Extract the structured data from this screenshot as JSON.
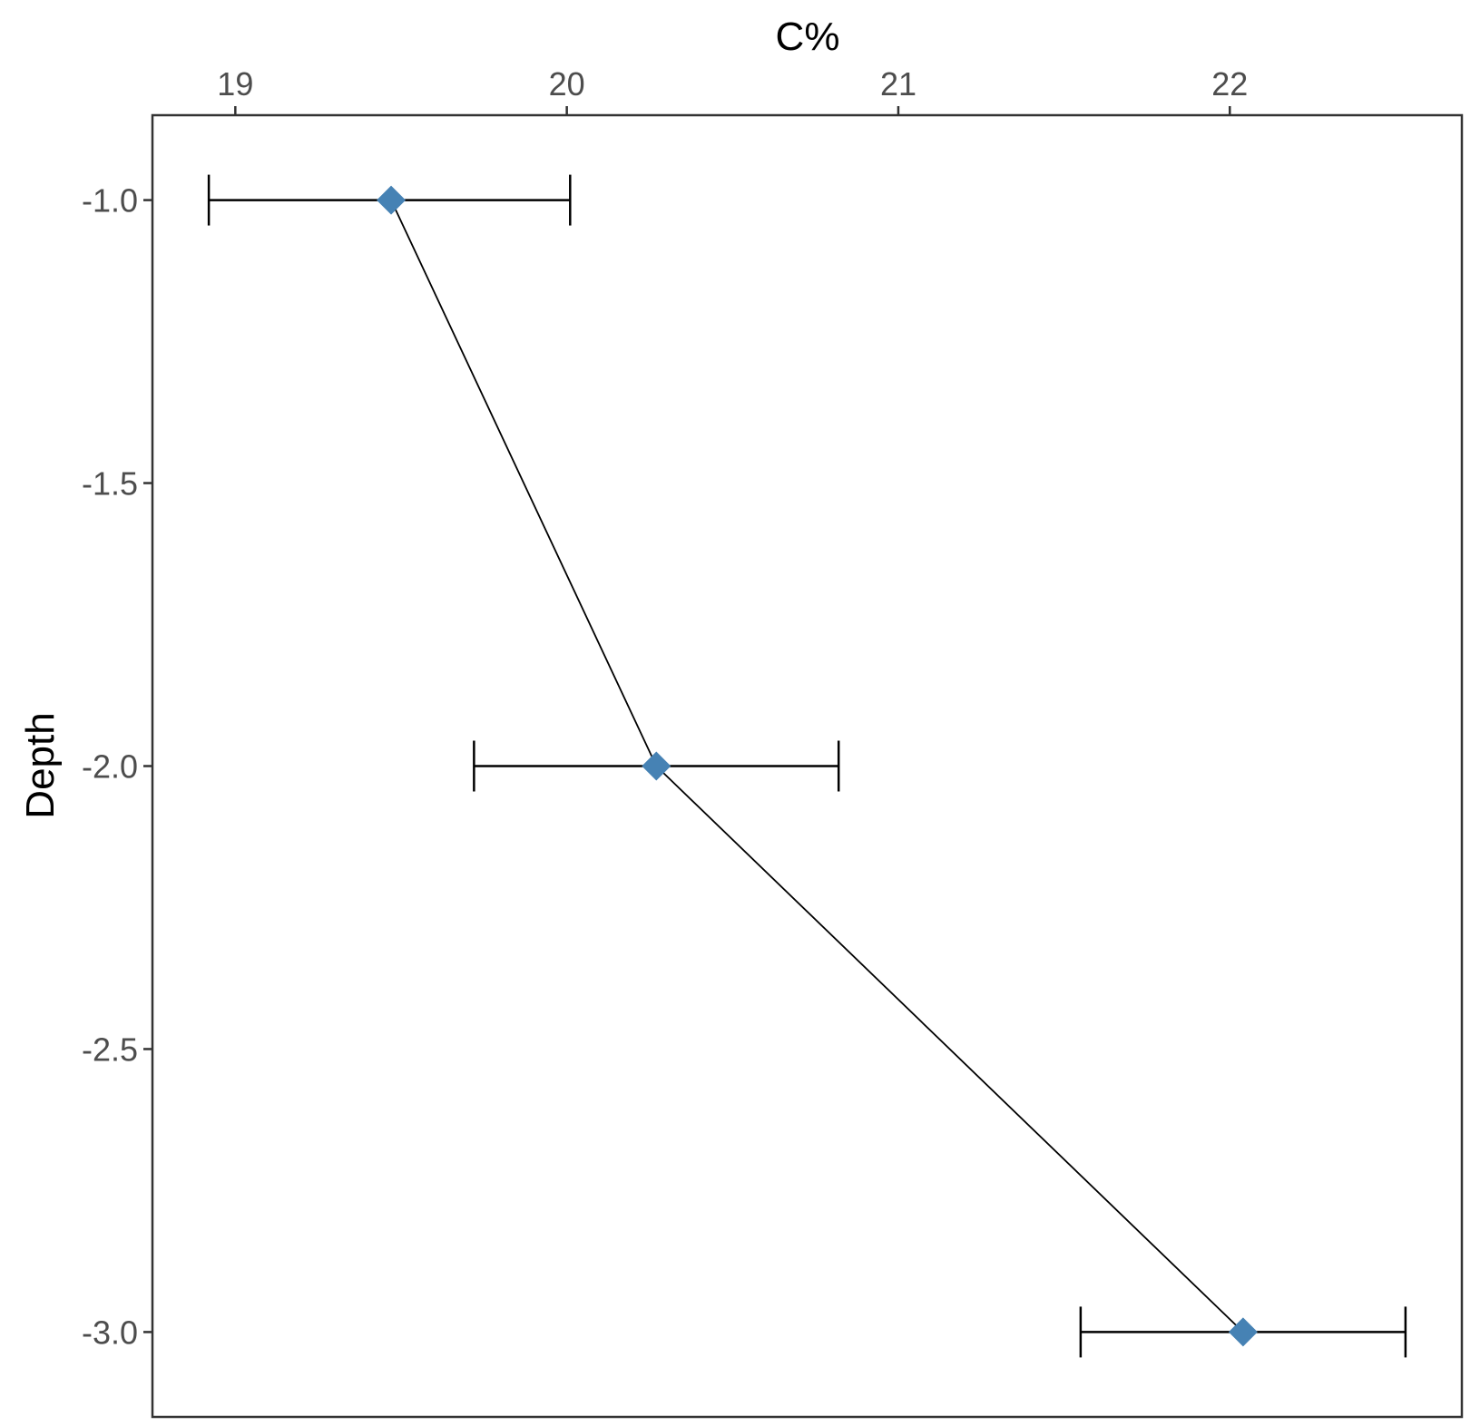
{
  "chart_data": {
    "type": "line",
    "xlabel": "C%",
    "ylabel": "Depth",
    "x_axis_position": "top",
    "xlim": [
      18.75,
      22.7
    ],
    "ylim": [
      -3.15,
      -0.85
    ],
    "x_ticks": [
      19,
      20,
      21,
      22
    ],
    "x_tick_labels": [
      "19",
      "20",
      "21",
      "22"
    ],
    "y_ticks": [
      -1.0,
      -1.5,
      -2.0,
      -2.5,
      -3.0
    ],
    "y_tick_labels": [
      "-1.0",
      "-1.5",
      "-2.0",
      "-2.5",
      "-3.0"
    ],
    "grid": false,
    "legend": "none",
    "series": [
      {
        "points": [
          {
            "x": 19.47,
            "y": -1.0,
            "xmin": 18.92,
            "xmax": 20.01
          },
          {
            "x": 20.27,
            "y": -2.0,
            "xmin": 19.72,
            "xmax": 20.82
          },
          {
            "x": 22.04,
            "y": -3.0,
            "xmin": 21.55,
            "xmax": 22.53
          }
        ],
        "marker": "diamond",
        "marker_color": "#4682B4",
        "line_color": "#000000",
        "errorbar_color": "#000000"
      }
    ]
  }
}
